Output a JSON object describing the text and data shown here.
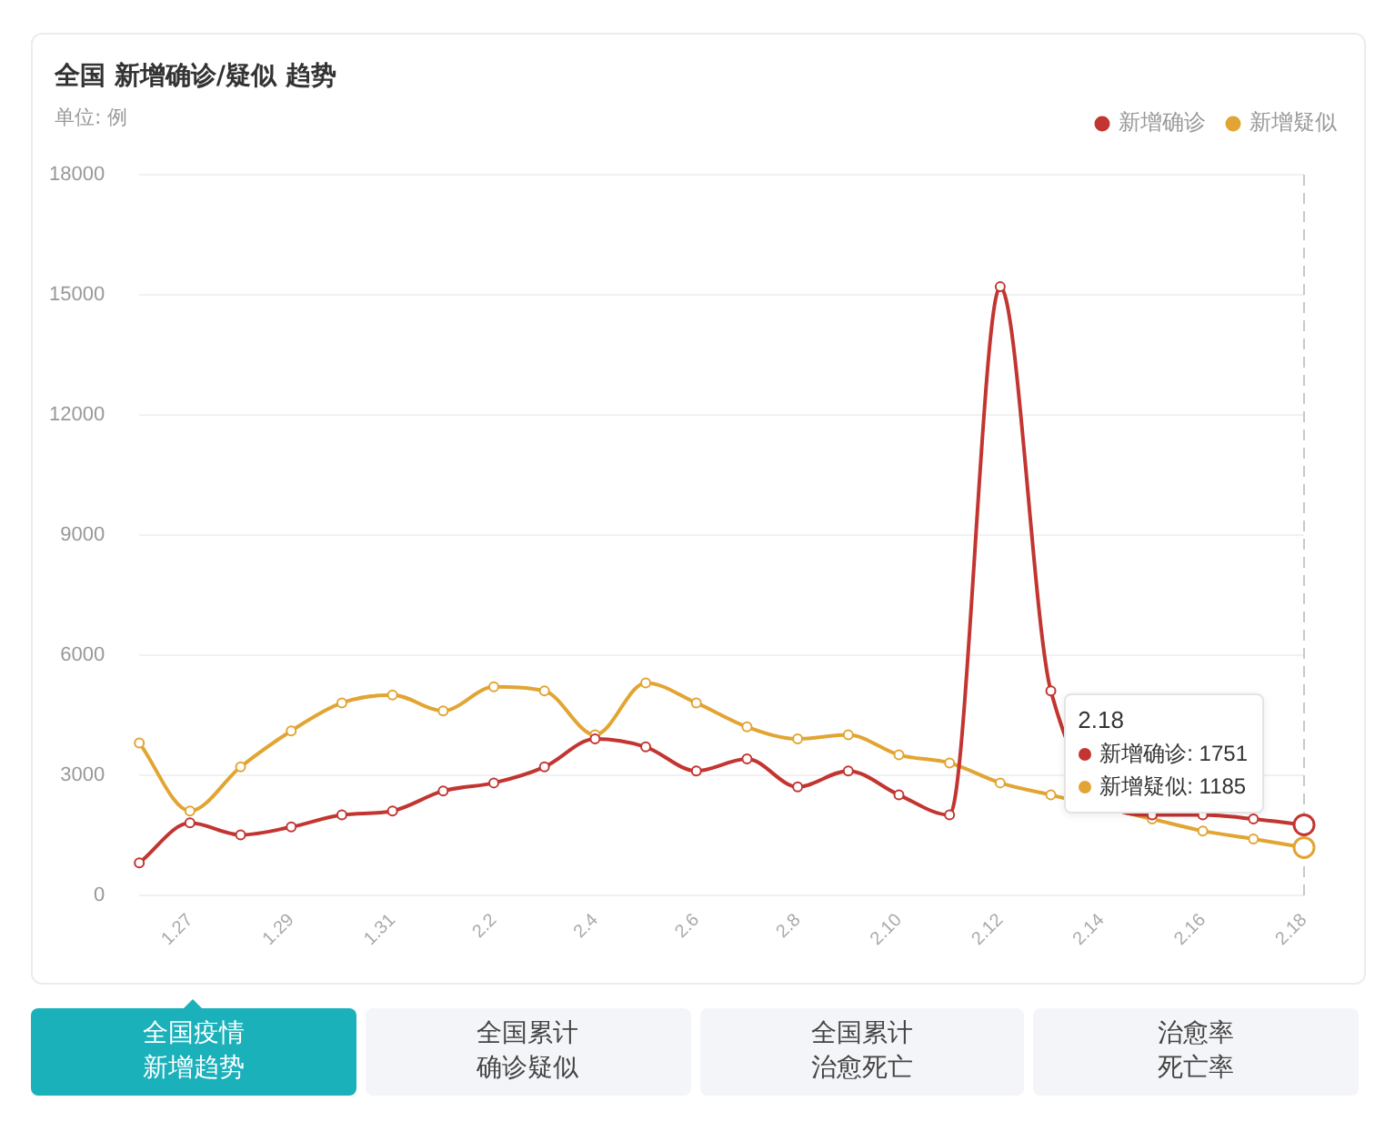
{
  "chart_data": {
    "type": "line",
    "title": "全国 新增确诊/疑似 趋势",
    "subtitle": "单位: 例",
    "categories": [
      null,
      "1.27",
      null,
      "1.29",
      null,
      "1.31",
      null,
      "2.2",
      null,
      "2.4",
      null,
      "2.6",
      null,
      "2.8",
      null,
      "2.10",
      null,
      "2.12",
      null,
      "2.14",
      null,
      "2.16",
      null,
      "2.18"
    ],
    "series": [
      {
        "name": "新增确诊",
        "color": "#c23531",
        "values": [
          800,
          1800,
          1500,
          1700,
          2000,
          2100,
          2600,
          2800,
          3200,
          3900,
          3700,
          3100,
          3400,
          2700,
          3100,
          2500,
          2000,
          15200,
          5100,
          null,
          2000,
          2000,
          1900,
          1751
        ]
      },
      {
        "name": "新增疑似",
        "color": "#e2a533",
        "values": [
          3800,
          2100,
          3200,
          4100,
          4800,
          5000,
          4600,
          5200,
          5100,
          4000,
          5300,
          4800,
          4200,
          3900,
          4000,
          3500,
          3300,
          2800,
          2500,
          null,
          1900,
          1600,
          1400,
          1185
        ]
      }
    ],
    "ylim": [
      0,
      18000
    ],
    "yticks": [
      0,
      3000,
      6000,
      9000,
      12000,
      15000,
      18000
    ],
    "grid": "y",
    "legend": "top right",
    "marker": "circle",
    "ref_lines": [
      {
        "axis": "x",
        "value": "2.18",
        "color": "#c8c8c8",
        "line_style": "dashed"
      }
    ],
    "annotations": [
      "新增确诊: 1751",
      "新增疑似: 1185",
      "全国疫情新增趋势",
      "全国累计确诊疑似",
      "全国累计治愈死亡",
      "治愈率死亡率"
    ]
  }
}
